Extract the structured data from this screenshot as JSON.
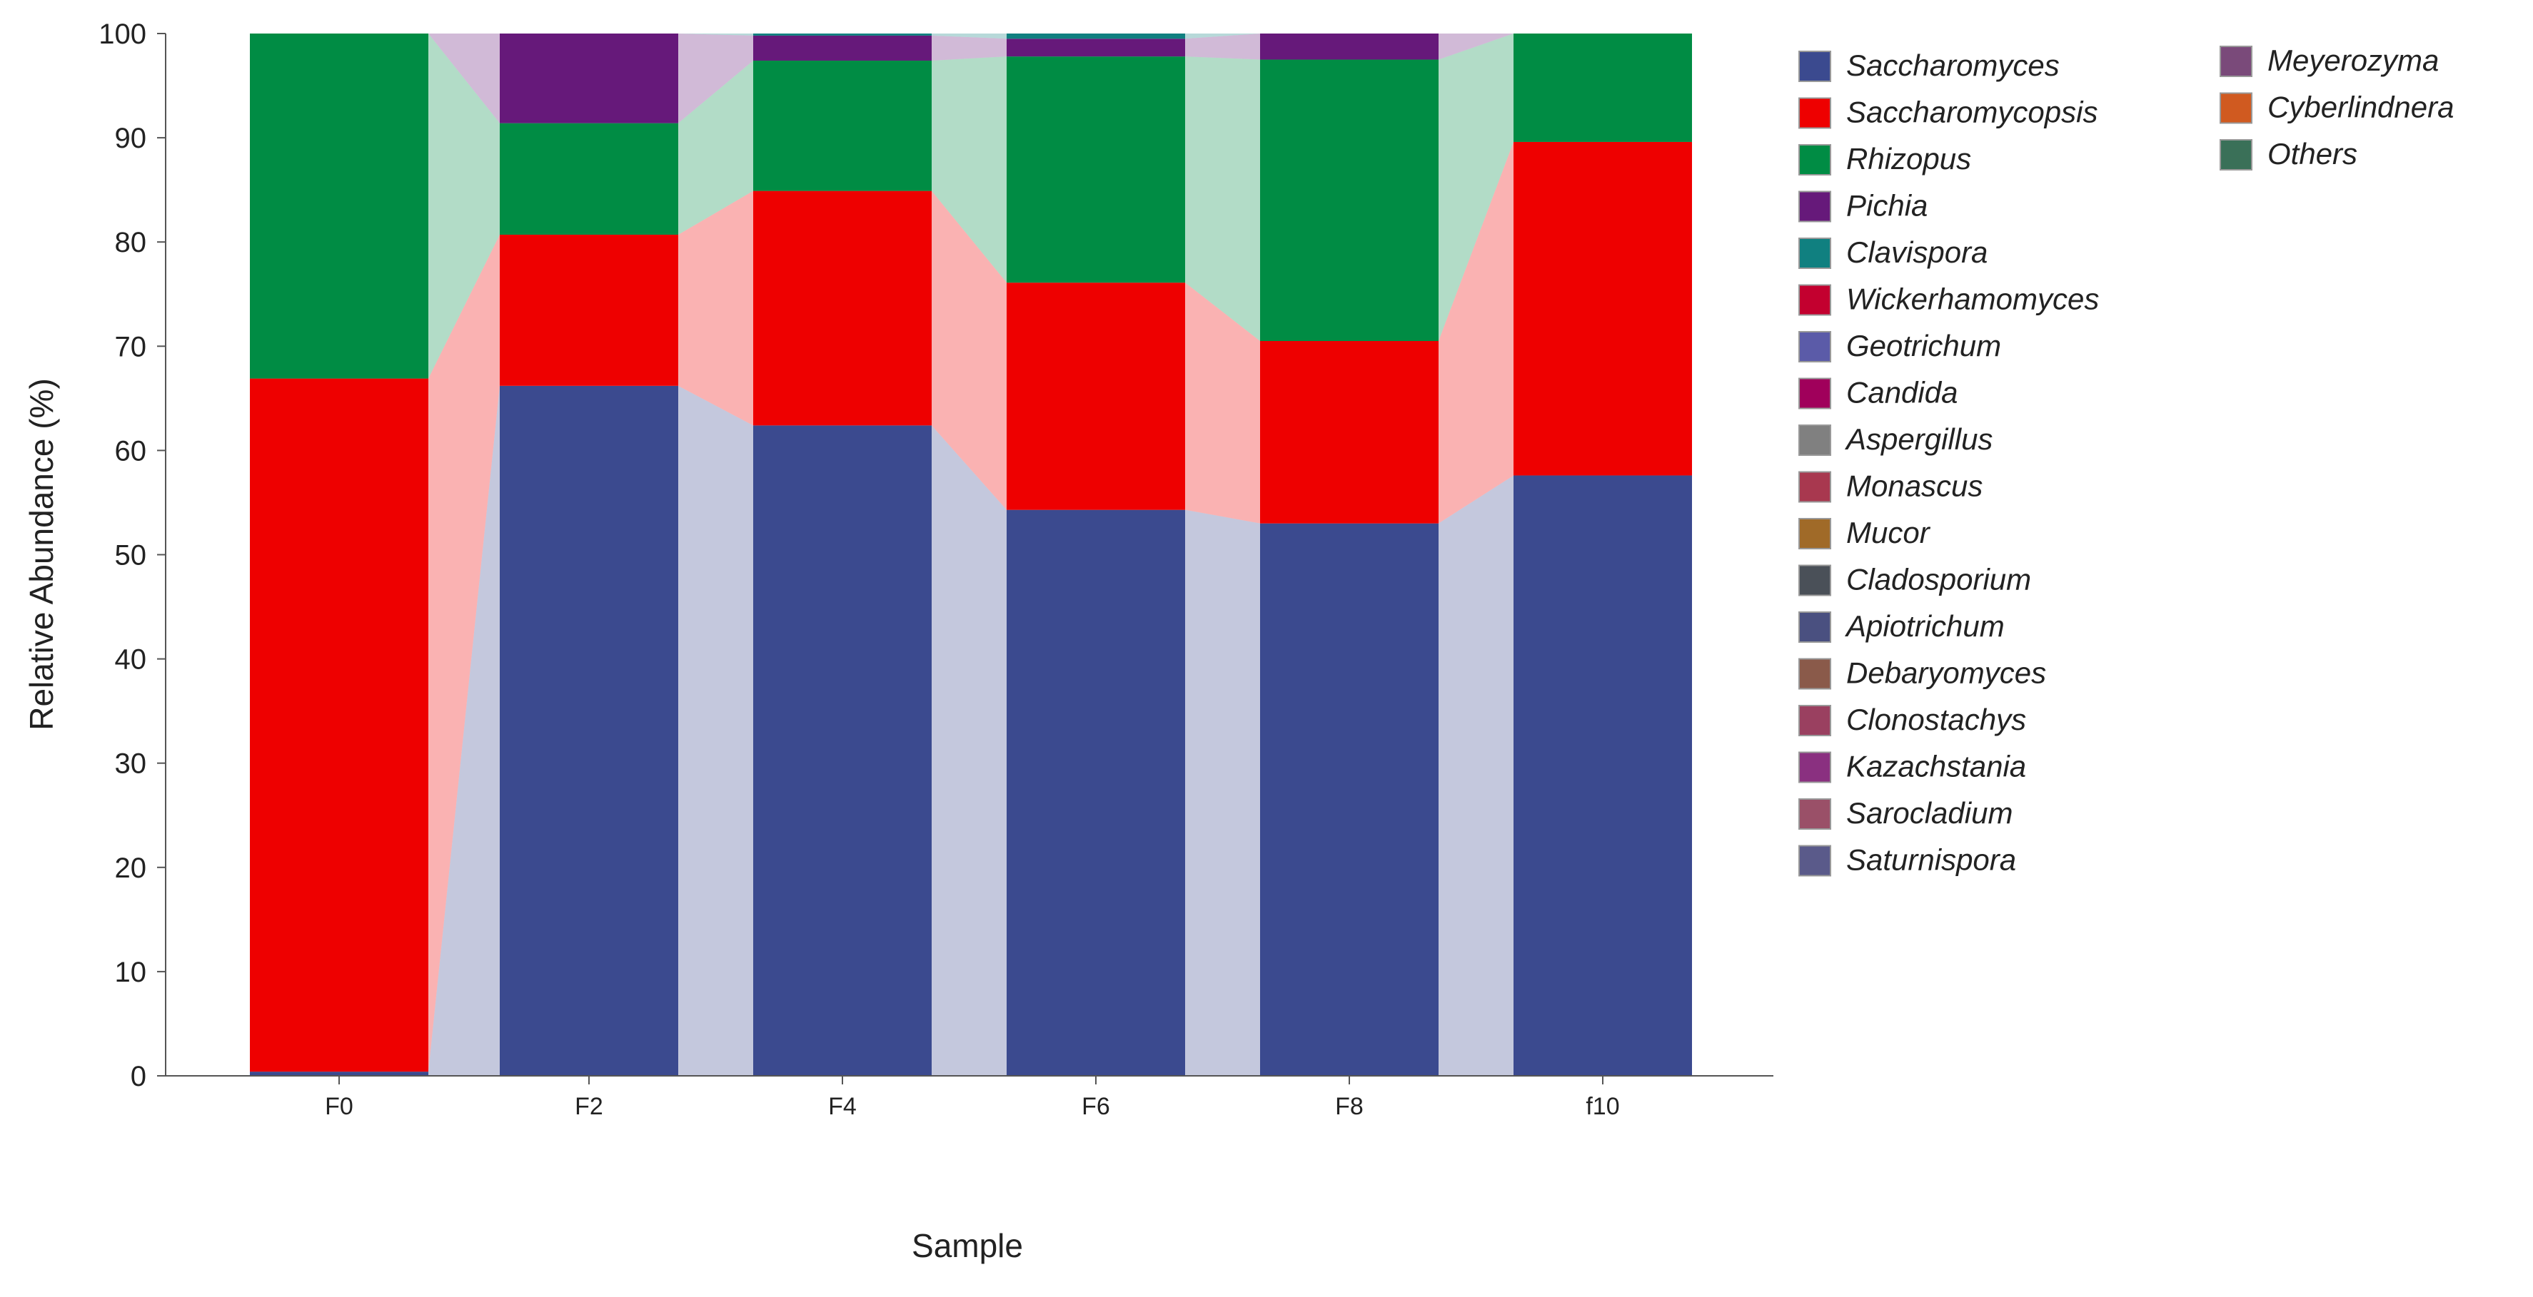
{
  "chart_data": {
    "type": "bar",
    "stacked": true,
    "xlabel": "Sample",
    "ylabel": "Relative Abundance (%)",
    "ylim": [
      0,
      100
    ],
    "yticks": [
      "0",
      "10",
      "20",
      "30",
      "40",
      "50",
      "60",
      "70",
      "80",
      "90",
      "100"
    ],
    "grid": false,
    "legend_position": "right",
    "categories": [
      "F0",
      "F2",
      "F4",
      "F6",
      "F8",
      "f10"
    ],
    "series": [
      {
        "name": "Saccharomyces",
        "color": "#3b4a8f",
        "values": [
          0.4,
          66.2,
          62.4,
          54.3,
          53.0,
          57.6
        ]
      },
      {
        "name": "Saccharomycopsis",
        "color": "#ee0000",
        "values": [
          66.5,
          14.5,
          22.5,
          21.8,
          17.5,
          32.0
        ]
      },
      {
        "name": "Rhizopus",
        "color": "#008c44",
        "values": [
          33.1,
          10.7,
          12.5,
          21.7,
          27.0,
          10.4
        ]
      },
      {
        "name": "Pichia",
        "color": "#66197a",
        "values": [
          0.0,
          8.6,
          2.4,
          1.7,
          2.5,
          0.0
        ]
      },
      {
        "name": "Clavispora",
        "color": "#108080",
        "values": [
          0.0,
          0.0,
          0.2,
          0.5,
          0.0,
          0.0
        ]
      },
      {
        "name": "Wickerhamomyces",
        "color": "#c3002f",
        "values": [
          0,
          0,
          0,
          0,
          0,
          0
        ]
      },
      {
        "name": "Geotrichum",
        "color": "#5b5ba8",
        "values": [
          0,
          0,
          0,
          0,
          0,
          0
        ]
      },
      {
        "name": "Candida",
        "color": "#a0005b",
        "values": [
          0,
          0,
          0,
          0,
          0,
          0
        ]
      },
      {
        "name": "Aspergillus",
        "color": "#808080",
        "values": [
          0,
          0,
          0,
          0,
          0,
          0
        ]
      },
      {
        "name": "Monascus",
        "color": "#a8384f",
        "values": [
          0,
          0,
          0,
          0,
          0,
          0
        ]
      },
      {
        "name": "Mucor",
        "color": "#a06a28",
        "values": [
          0,
          0,
          0,
          0,
          0,
          0
        ]
      },
      {
        "name": "Cladosporium",
        "color": "#4a5058",
        "values": [
          0,
          0,
          0,
          0,
          0,
          0
        ]
      },
      {
        "name": "Apiotrichum",
        "color": "#4a5080",
        "values": [
          0,
          0,
          0,
          0,
          0,
          0
        ]
      },
      {
        "name": "Debaryomyces",
        "color": "#8a5a4a",
        "values": [
          0,
          0,
          0,
          0,
          0,
          0
        ]
      },
      {
        "name": "Clonostachys",
        "color": "#9a4060",
        "values": [
          0,
          0,
          0,
          0,
          0,
          0
        ]
      },
      {
        "name": "Kazachstania",
        "color": "#8a3080",
        "values": [
          0,
          0,
          0,
          0,
          0,
          0
        ]
      },
      {
        "name": "Sarocladium",
        "color": "#9a5068",
        "values": [
          0,
          0,
          0,
          0,
          0,
          0
        ]
      },
      {
        "name": "Saturnispora",
        "color": "#5a5a8a",
        "values": [
          0,
          0,
          0,
          0,
          0,
          0
        ]
      },
      {
        "name": "Meyerozyma",
        "color": "#7a4a7a",
        "values": [
          0,
          0,
          0,
          0,
          0,
          0
        ]
      },
      {
        "name": "Cyberlindnera",
        "color": "#d05a20",
        "values": [
          0,
          0,
          0,
          0,
          0,
          0
        ]
      },
      {
        "name": "Others",
        "color": "#3a7058",
        "values": [
          0,
          0,
          0,
          0,
          0,
          0
        ]
      }
    ]
  }
}
